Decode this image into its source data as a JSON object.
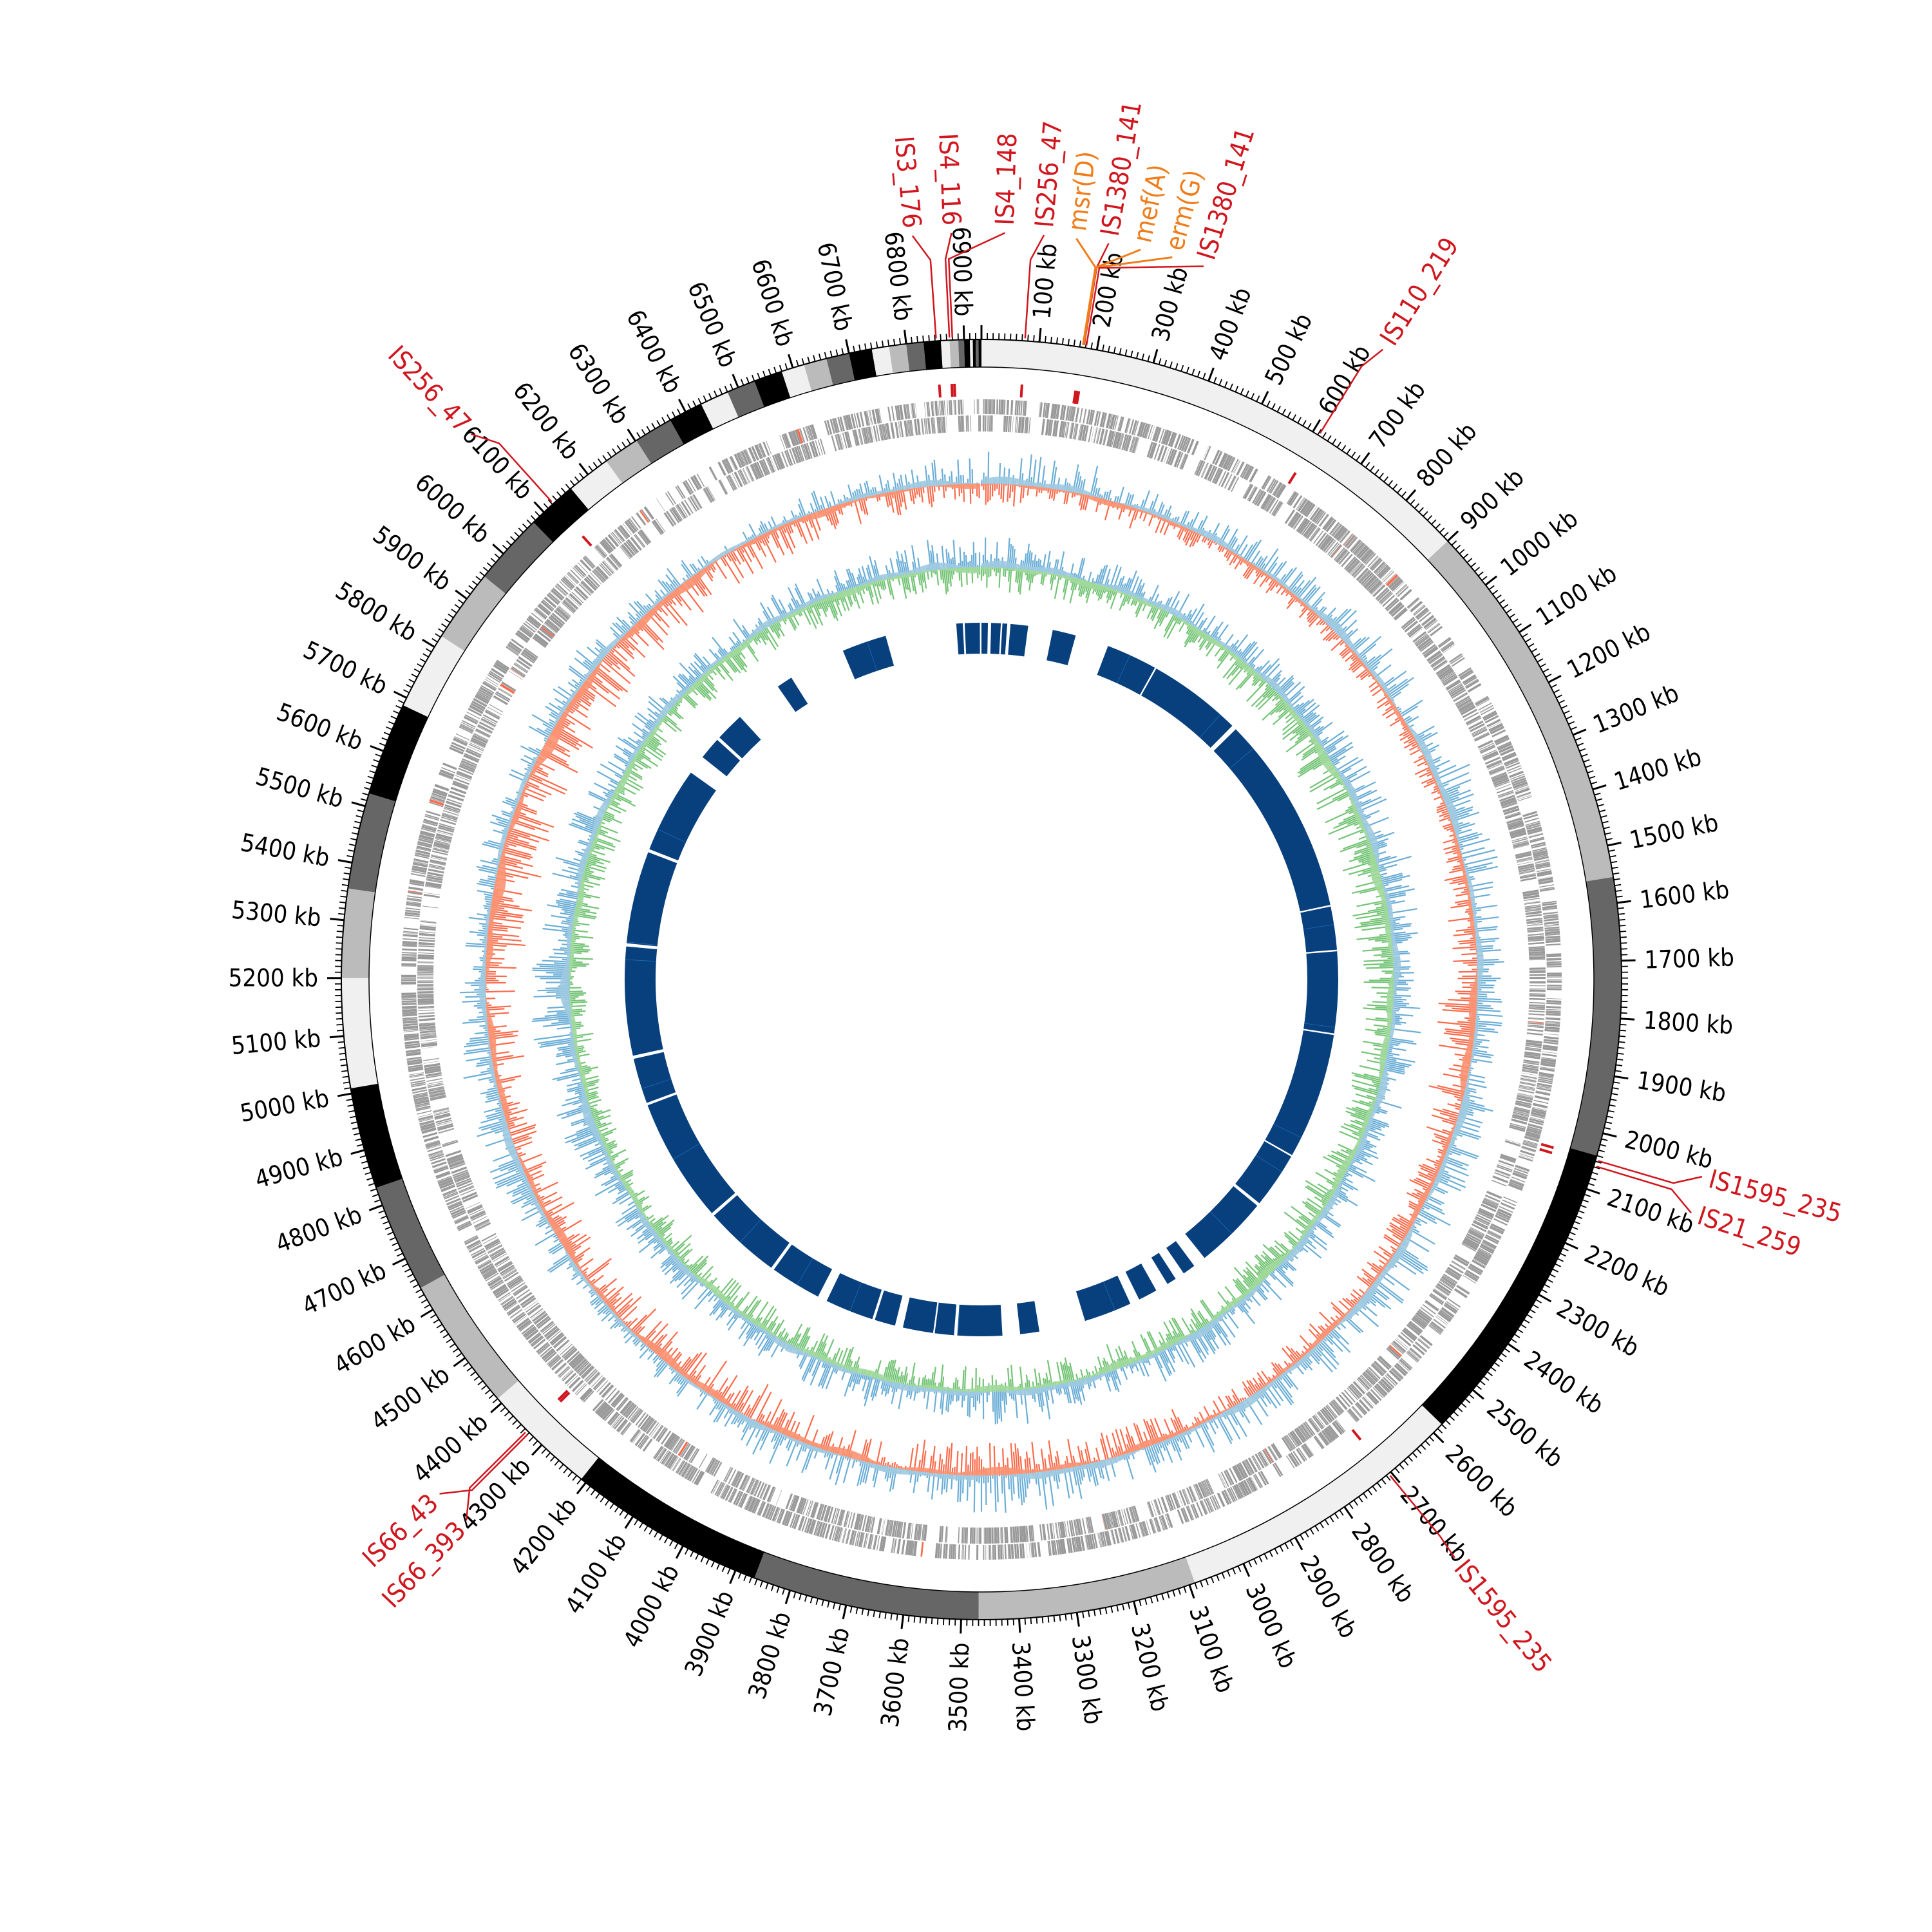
{
  "chart_data": {
    "type": "area",
    "subtype": "circular-genome-map",
    "title": "",
    "genome_length_kb": 6930,
    "tick_unit": "kb",
    "major_tick_kb": 100,
    "minor_tick_kb": 10,
    "tick_labels": [
      "100 kb",
      "200 kb",
      "300 kb",
      "400 kb",
      "500 kb",
      "600 kb",
      "700 kb",
      "800 kb",
      "900 kb",
      "1000 kb",
      "1100 kb",
      "1200 kb",
      "1300 kb",
      "1400 kb",
      "1500 kb",
      "1600 kb",
      "1700 kb",
      "1800 kb",
      "1900 kb",
      "2000 kb",
      "2100 kb",
      "2200 kb",
      "2300 kb",
      "2400 kb",
      "2500 kb",
      "2600 kb",
      "2700 kb",
      "2800 kb",
      "2900 kb",
      "3000 kb",
      "3100 kb",
      "3200 kb",
      "3300 kb",
      "3400 kb",
      "3500 kb",
      "3600 kb",
      "3700 kb",
      "3800 kb",
      "3900 kb",
      "4000 kb",
      "4100 kb",
      "4200 kb",
      "4300 kb",
      "4400 kb",
      "4500 kb",
      "4600 kb",
      "4700 kb",
      "4800 kb",
      "4900 kb",
      "5000 kb",
      "5100 kb",
      "5200 kb",
      "5300 kb",
      "5400 kb",
      "5500 kb",
      "5600 kb",
      "5700 kb",
      "5800 kb",
      "5900 kb",
      "6000 kb",
      "6100 kb",
      "6200 kb",
      "6300 kb",
      "6400 kb",
      "6500 kb",
      "6600 kb",
      "6700 kb",
      "6800 kb",
      "6900 kb"
    ],
    "contig_bands": [
      {
        "start": 0,
        "end": 900,
        "color": "#f0f0f0"
      },
      {
        "start": 900,
        "end": 1555,
        "color": "#bbbbbb"
      },
      {
        "start": 1555,
        "end": 2040,
        "color": "#666666"
      },
      {
        "start": 2040,
        "end": 2580,
        "color": "#000000"
      },
      {
        "start": 2580,
        "end": 3090,
        "color": "#f0f0f0"
      },
      {
        "start": 3090,
        "end": 3470,
        "color": "#bbbbbb"
      },
      {
        "start": 3470,
        "end": 3865,
        "color": "#666666"
      },
      {
        "start": 3865,
        "end": 4210,
        "color": "#000000"
      },
      {
        "start": 4210,
        "end": 4410,
        "color": "#f0f0f0"
      },
      {
        "start": 4410,
        "end": 4643,
        "color": "#bbbbbb"
      },
      {
        "start": 4643,
        "end": 4832,
        "color": "#666666"
      },
      {
        "start": 4832,
        "end": 5009,
        "color": "#000000"
      },
      {
        "start": 5009,
        "end": 5200,
        "color": "#f0f0f0"
      },
      {
        "start": 5200,
        "end": 5355,
        "color": "#bbbbbb"
      },
      {
        "start": 5355,
        "end": 5523,
        "color": "#666666"
      },
      {
        "start": 5523,
        "end": 5686,
        "color": "#000000"
      },
      {
        "start": 5686,
        "end": 5822,
        "color": "#f0f0f0"
      },
      {
        "start": 5822,
        "end": 5949,
        "color": "#bbbbbb"
      },
      {
        "start": 5949,
        "end": 6075,
        "color": "#666666"
      },
      {
        "start": 6075,
        "end": 6162,
        "color": "#000000"
      },
      {
        "start": 6162,
        "end": 6239,
        "color": "#f0f0f0"
      },
      {
        "start": 6239,
        "end": 6302,
        "color": "#bbbbbb"
      },
      {
        "start": 6302,
        "end": 6370,
        "color": "#666666"
      },
      {
        "start": 6370,
        "end": 6430,
        "color": "#000000"
      },
      {
        "start": 6430,
        "end": 6480,
        "color": "#f0f0f0"
      },
      {
        "start": 6480,
        "end": 6530,
        "color": "#666666"
      },
      {
        "start": 6530,
        "end": 6580,
        "color": "#000000"
      },
      {
        "start": 6580,
        "end": 6620,
        "color": "#f0f0f0"
      },
      {
        "start": 6620,
        "end": 6660,
        "color": "#bbbbbb"
      },
      {
        "start": 6660,
        "end": 6700,
        "color": "#666666"
      },
      {
        "start": 6700,
        "end": 6740,
        "color": "#000000"
      },
      {
        "start": 6740,
        "end": 6770,
        "color": "#f0f0f0"
      },
      {
        "start": 6770,
        "end": 6800,
        "color": "#bbbbbb"
      },
      {
        "start": 6800,
        "end": 6830,
        "color": "#666666"
      },
      {
        "start": 6830,
        "end": 6860,
        "color": "#000000"
      },
      {
        "start": 6860,
        "end": 6875,
        "color": "#f0f0f0"
      },
      {
        "start": 6875,
        "end": 6890,
        "color": "#bbbbbb"
      },
      {
        "start": 6890,
        "end": 6900,
        "color": "#666666"
      },
      {
        "start": 6900,
        "end": 6910,
        "color": "#000000"
      },
      {
        "start": 6910,
        "end": 6915,
        "color": "#f0f0f0"
      },
      {
        "start": 6915,
        "end": 6920,
        "color": "#000000"
      },
      {
        "start": 6920,
        "end": 6925,
        "color": "#666666"
      },
      {
        "start": 6925,
        "end": 6930,
        "color": "#000000"
      }
    ],
    "features": [
      {
        "label": "IS3_176",
        "kb": 6852,
        "type": "IS"
      },
      {
        "label": "IS4_116",
        "kb": 6875,
        "type": "IS"
      },
      {
        "label": "IS4_148",
        "kb": 6880,
        "type": "IS"
      },
      {
        "label": "IS256_47",
        "kb": 75,
        "type": "IS"
      },
      {
        "label": "msr(D)",
        "kb": 175,
        "type": "ARG"
      },
      {
        "label": "IS1380_141",
        "kb": 177,
        "type": "IS"
      },
      {
        "label": "mef(A)",
        "kb": 176,
        "type": "ARG"
      },
      {
        "label": "erm(G)",
        "kb": 176,
        "type": "ARG"
      },
      {
        "label": "IS1380_141",
        "kb": 181,
        "type": "IS"
      },
      {
        "label": "IS110_219",
        "kb": 612,
        "type": "IS"
      },
      {
        "label": "IS1595_235",
        "kb": 2048,
        "type": "IS"
      },
      {
        "label": "IS21_259",
        "kb": 2058,
        "type": "IS"
      },
      {
        "label": "IS1595_235",
        "kb": 2705,
        "type": "IS"
      },
      {
        "label": "IS66_43",
        "kb": 4330,
        "type": "IS"
      },
      {
        "label": "IS66_393",
        "kb": 4335,
        "type": "IS"
      },
      {
        "label": "IS256_47",
        "kb": 6122,
        "type": "IS"
      }
    ],
    "gc_skew": {
      "bin_kb": 250,
      "positive": [
        0.6,
        0.4,
        0.5,
        0.6,
        0.6,
        0.7,
        0.5,
        0.5,
        0.6,
        0.7,
        0.6,
        0.6,
        0.5,
        0.7,
        0.5,
        0.6,
        0.4,
        0.3,
        0.5,
        0.6,
        0.5,
        0.4,
        0.4,
        0.5,
        0.4,
        0.3,
        0.4,
        0.5
      ],
      "negative": [
        0.4,
        0.4,
        0.3,
        0.3,
        0.3,
        0.3,
        0.5,
        0.7,
        0.5,
        0.4,
        0.4,
        0.3,
        0.5,
        0.6,
        0.6,
        0.6,
        0.7,
        0.6,
        0.6,
        0.5,
        0.6,
        0.8,
        0.8,
        0.8,
        0.7,
        0.6,
        0.5,
        0.4
      ]
    },
    "gc_content": {
      "bin_kb": 250,
      "above": [
        0.6,
        0.5,
        0.5,
        0.5,
        0.6,
        0.7,
        0.6,
        0.6,
        0.6,
        0.6,
        0.6,
        0.6,
        0.5,
        0.7,
        0.5,
        0.6,
        0.5,
        0.5,
        0.6,
        0.7,
        0.8,
        0.6,
        0.6,
        0.5,
        0.5,
        0.5,
        0.5,
        0.6
      ],
      "below": [
        0.5,
        0.5,
        0.5,
        0.6,
        0.7,
        0.7,
        0.7,
        0.6,
        0.6,
        0.6,
        0.6,
        0.5,
        0.6,
        0.5,
        0.5,
        0.5,
        0.5,
        0.5,
        0.4,
        0.4,
        0.4,
        0.5,
        0.5,
        0.5,
        0.5,
        0.5,
        0.5,
        0.5
      ]
    },
    "aligned_blocks": [
      [
        6852,
        6872
      ],
      [
        6878,
        6925
      ],
      [
        0,
        20
      ],
      [
        30,
        60
      ],
      [
        65,
        80
      ],
      [
        90,
        145
      ],
      [
        222,
        295
      ],
      [
        400,
        560
      ],
      [
        565,
        860
      ],
      [
        875,
        1500
      ],
      [
        1505,
        1640
      ],
      [
        1645,
        1900
      ],
      [
        1905,
        2300
      ],
      [
        2305,
        2480
      ],
      [
        2490,
        2720
      ],
      [
        2760,
        2800
      ],
      [
        2830,
        2860
      ],
      [
        2900,
        2960
      ],
      [
        2990,
        3140
      ],
      [
        3285,
        3345
      ],
      [
        3400,
        3540
      ],
      [
        3550,
        3610
      ],
      [
        3615,
        3710
      ],
      [
        3735,
        3800
      ],
      [
        3808,
        3960
      ],
      [
        3990,
        4150
      ],
      [
        4160,
        4400
      ],
      [
        4410,
        4800
      ],
      [
        4808,
        4950
      ],
      [
        4960,
        5300
      ],
      [
        5310,
        5600
      ],
      [
        5610,
        5880
      ],
      [
        5940,
        6010
      ],
      [
        6020,
        6110
      ],
      [
        6260,
        6310
      ],
      [
        6490,
        6630
      ]
    ],
    "colors": {
      "is_element": "#d0161e",
      "resistance_gene": "#f07d1a",
      "gene": "#999999",
      "skew_positive": "#6baed6",
      "skew_positive_fill": "#9ecae1",
      "skew_negative": "#fb6a4a",
      "skew_negative_fill": "#fc9272",
      "gc_below": "#74c476",
      "gc_below_fill": "#a1d99b",
      "block": "#08407e",
      "block_highlight": "#1f6fb4"
    }
  }
}
